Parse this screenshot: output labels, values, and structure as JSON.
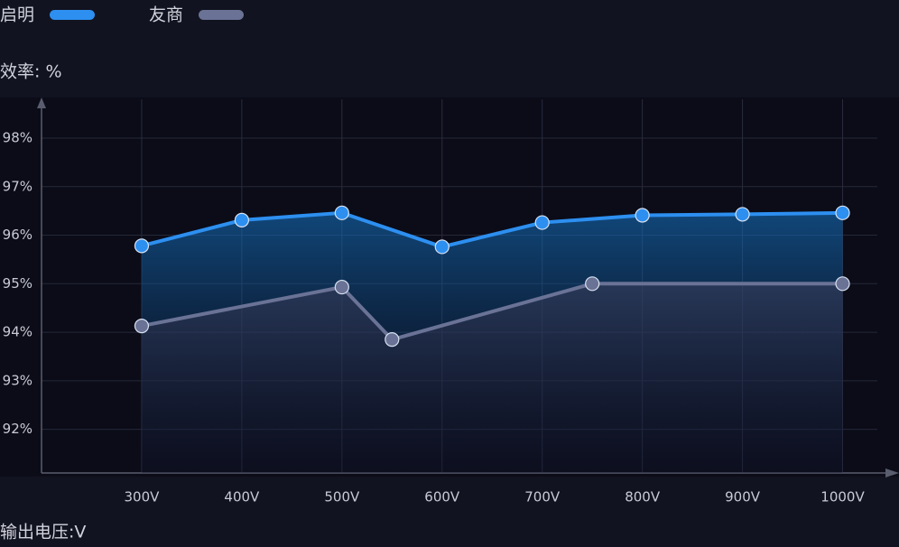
{
  "chart_data": {
    "type": "line",
    "y_label": "效率: %",
    "x_label": "输出电压:V",
    "xlim": [
      200,
      1050
    ],
    "xticks": [
      {
        "value": 300,
        "label": "300V"
      },
      {
        "value": 400,
        "label": "400V"
      },
      {
        "value": 500,
        "label": "500V"
      },
      {
        "value": 600,
        "label": "600V"
      },
      {
        "value": 700,
        "label": "700V"
      },
      {
        "value": 800,
        "label": "800V"
      },
      {
        "value": 900,
        "label": "900V"
      },
      {
        "value": 1000,
        "label": "1000V"
      }
    ],
    "ylim": [
      91.1,
      98.8
    ],
    "yticks": [
      {
        "value": 92,
        "label": "92%"
      },
      {
        "value": 93,
        "label": "93%"
      },
      {
        "value": 94,
        "label": "94%"
      },
      {
        "value": 95,
        "label": "95%"
      },
      {
        "value": 96,
        "label": "96%"
      },
      {
        "value": 97,
        "label": "97%"
      },
      {
        "value": 98,
        "label": "98%"
      }
    ],
    "grid": true,
    "series": [
      {
        "name": "启明",
        "color": "#2d8ff0",
        "x": [
          300,
          400,
          500,
          600,
          700,
          800,
          900,
          1000
        ],
        "values": [
          95.78,
          96.31,
          96.46,
          95.76,
          96.26,
          96.41,
          96.43,
          96.46
        ]
      },
      {
        "name": "友商",
        "color": "#6a7396",
        "x": [
          300,
          500,
          550,
          750,
          1000
        ],
        "values": [
          94.13,
          94.93,
          93.85,
          95.0,
          95.0
        ]
      }
    ]
  }
}
